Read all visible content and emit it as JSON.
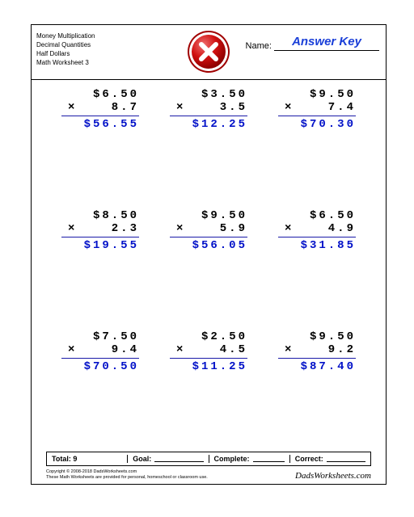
{
  "header": {
    "lines": [
      "Money Multiplication",
      "Decimal Quantities",
      "Half Dollars",
      "Math Worksheet 3"
    ],
    "name_label": "Name:",
    "answer_key": "Answer Key"
  },
  "logo": {
    "ring_outer_color": "#c00000",
    "ring_inner_color": "#ffffff",
    "gloss_color": "#e05050",
    "x_color": "#ffffff"
  },
  "problems": [
    {
      "top": "$6.50",
      "mid": "8.7",
      "ans": "$56.55"
    },
    {
      "top": "$3.50",
      "mid": "3.5",
      "ans": "$12.25"
    },
    {
      "top": "$9.50",
      "mid": "7.4",
      "ans": "$70.30"
    },
    {
      "top": "$8.50",
      "mid": "2.3",
      "ans": "$19.55"
    },
    {
      "top": "$9.50",
      "mid": "5.9",
      "ans": "$56.05"
    },
    {
      "top": "$6.50",
      "mid": "4.9",
      "ans": "$31.85"
    },
    {
      "top": "$7.50",
      "mid": "9.4",
      "ans": "$70.50"
    },
    {
      "top": "$2.50",
      "mid": "4.5",
      "ans": "$11.25"
    },
    {
      "top": "$9.50",
      "mid": "9.2",
      "ans": "$87.40"
    }
  ],
  "op_symbol": "×",
  "footer": {
    "total_label": "Total:",
    "total_value": "9",
    "goal_label": "Goal:",
    "complete_label": "Complete:",
    "correct_label": "Correct:"
  },
  "copyright": {
    "line1": "Copyright © 2008-2018 DadsWorksheets.com",
    "line2": "These Math Worksheets are provided for personal, homeschool or classroom use."
  },
  "site": "DadsWorksheets.com",
  "colors": {
    "answer_text": "#0010c8",
    "rule": "#1a1aa8",
    "answer_key": "#1a3fd8"
  }
}
